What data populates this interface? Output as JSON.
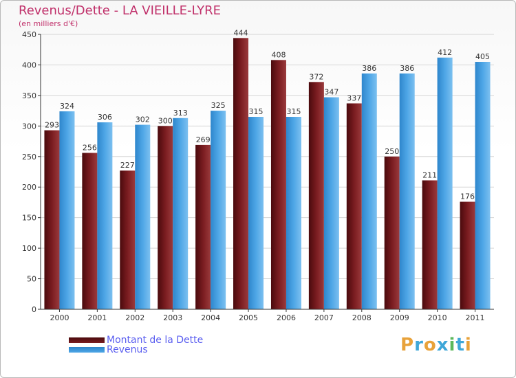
{
  "header": {
    "title": "Revenus/Dette - LA VIEILLE-LYRE",
    "subtitle": "(en milliers d'€)"
  },
  "logo": {
    "text": "Proxiti",
    "letter_colors": [
      "#e8a23a",
      "#3fa7d8",
      "#e8a23a",
      "#3fa7d8",
      "#5cb85c",
      "#3fa7d8",
      "#e8a23a"
    ]
  },
  "colors": {
    "dette": "#7a1c20",
    "revenus": "#4ea6e6",
    "axis": "#333333",
    "grid": "#d5d5d5",
    "label": "#333333"
  },
  "chart_data": {
    "type": "bar",
    "title": "Revenus/Dette - LA VIEILLE-LYRE",
    "subtitle": "(en milliers d'€)",
    "categories": [
      "2000",
      "2001",
      "2002",
      "2003",
      "2004",
      "2005",
      "2006",
      "2007",
      "2008",
      "2009",
      "2010",
      "2011"
    ],
    "series": [
      {
        "name": "Montant de la Dette",
        "values": [
          293,
          256,
          227,
          300,
          269,
          444,
          408,
          372,
          337,
          250,
          211,
          176
        ]
      },
      {
        "name": "Revenus",
        "values": [
          324,
          306,
          302,
          313,
          325,
          315,
          315,
          347,
          386,
          386,
          412,
          405
        ]
      }
    ],
    "ylim": [
      0,
      450
    ],
    "yticks": [
      0,
      50,
      100,
      150,
      200,
      250,
      300,
      350,
      400,
      450
    ],
    "grid": true,
    "legend": "bottom-left"
  }
}
